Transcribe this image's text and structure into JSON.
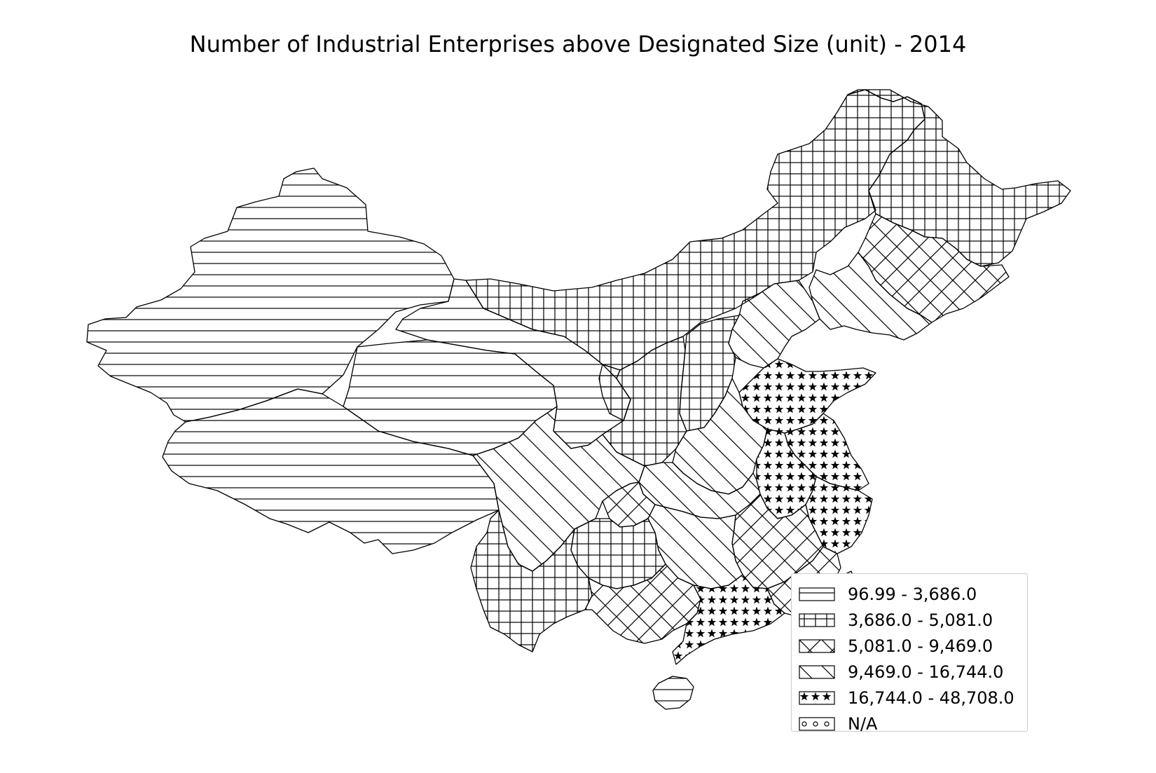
{
  "title": "Number of Industrial Enterprises above Designated Size (unit) - 2014",
  "legend": {
    "placement": "bottom-right",
    "items": [
      {
        "label": "96.99 - 3,686.0",
        "pattern": "horizontal-lines"
      },
      {
        "label": "3,686.0 - 5,081.0",
        "pattern": "grid"
      },
      {
        "label": "5,081.0 - 9,469.0",
        "pattern": "cross-diagonal"
      },
      {
        "label": "9,469.0 - 16,744.0",
        "pattern": "back-diagonal"
      },
      {
        "label": "16,744.0 - 48,708.0",
        "pattern": "stars"
      },
      {
        "label": "N/A",
        "pattern": "circles"
      }
    ]
  },
  "colors": {
    "stroke": "#000000",
    "background": "#ffffff"
  }
}
